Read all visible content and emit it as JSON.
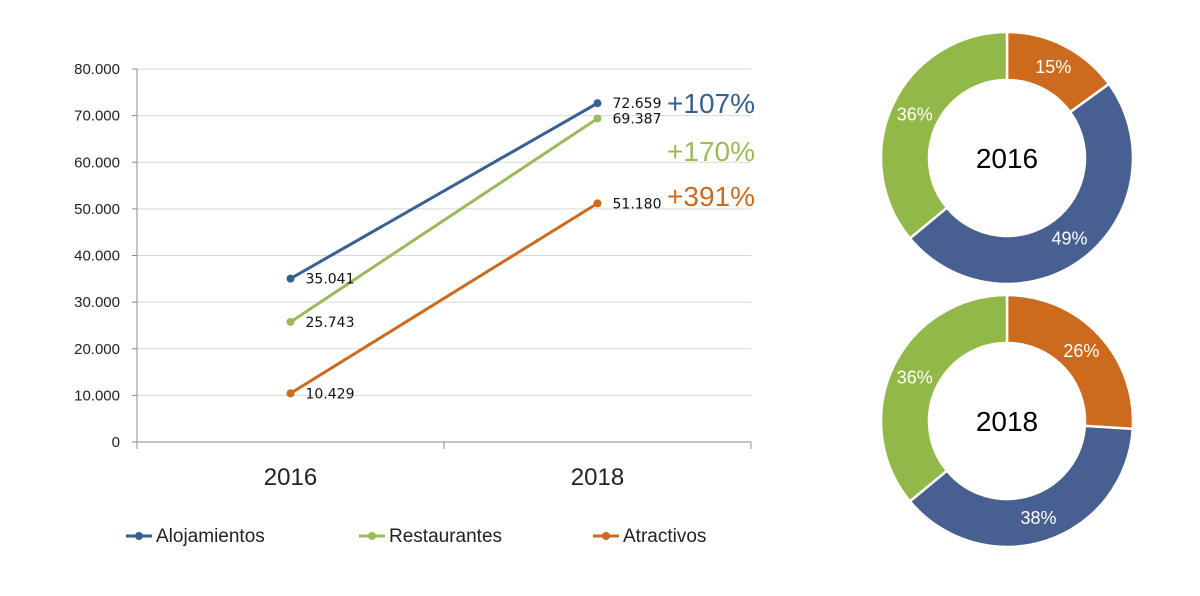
{
  "chart_data": [
    {
      "type": "line",
      "title": "",
      "xlabel": "",
      "ylabel": "",
      "categories": [
        "2016",
        "2018"
      ],
      "ylim": [
        0,
        80000
      ],
      "yticks": [
        "0",
        "10.000",
        "20.000",
        "30.000",
        "40.000",
        "50.000",
        "60.000",
        "70.000",
        "80.000"
      ],
      "grid": true,
      "legend_position": "bottom",
      "series": [
        {
          "name": "Alojamientos",
          "values": [
            35041,
            72659
          ],
          "labels": [
            "35.041",
            "72.659"
          ],
          "growth": "+107%",
          "color": "#376092"
        },
        {
          "name": "Restaurantes",
          "values": [
            25743,
            69387
          ],
          "labels": [
            "25.743",
            "69.387"
          ],
          "growth": "+170%",
          "color": "#9BBB59"
        },
        {
          "name": "Atractivos",
          "values": [
            10429,
            51180
          ],
          "labels": [
            "10.429",
            "51.180"
          ],
          "growth": "+391%",
          "color": "#CC6A1E"
        }
      ]
    },
    {
      "type": "pie",
      "center_label": "2016",
      "slices": [
        {
          "category": "Atractivos",
          "value": 15,
          "label": "15%",
          "color": "#CC6A1E"
        },
        {
          "category": "Alojamientos",
          "value": 49,
          "label": "49%",
          "color": "#475F91"
        },
        {
          "category": "Restaurantes",
          "value": 36,
          "label": "36%",
          "color": "#92B948"
        }
      ]
    },
    {
      "type": "pie",
      "center_label": "2018",
      "slices": [
        {
          "category": "Atractivos",
          "value": 26,
          "label": "26%",
          "color": "#CC6A1E"
        },
        {
          "category": "Alojamientos",
          "value": 38,
          "label": "38%",
          "color": "#475F91"
        },
        {
          "category": "Restaurantes",
          "value": 36,
          "label": "36%",
          "color": "#92B948"
        }
      ]
    }
  ]
}
